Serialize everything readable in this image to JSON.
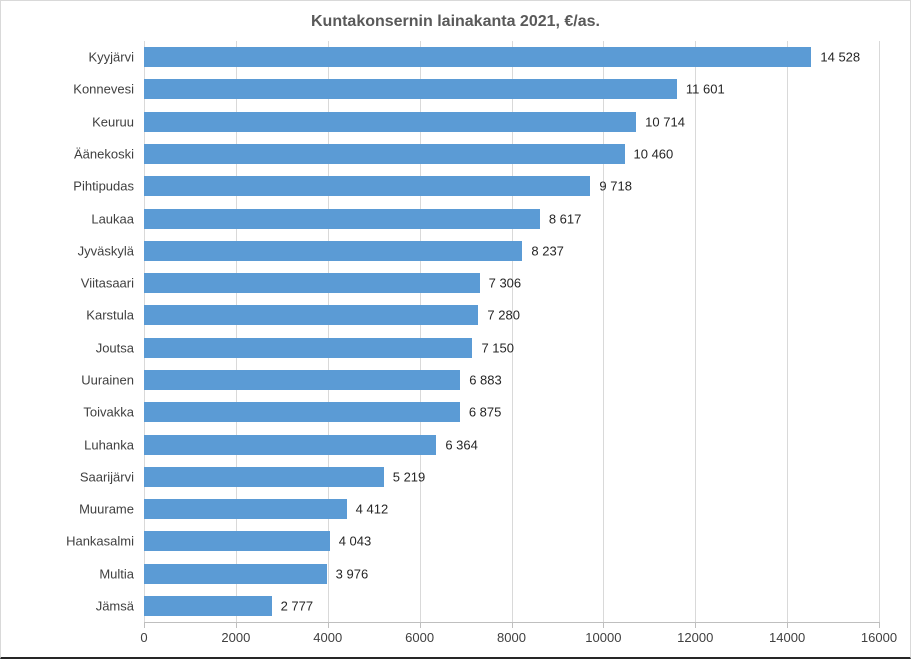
{
  "chart_data": {
    "type": "bar",
    "orientation": "horizontal",
    "title": "Kuntakonsernin lainakanta 2021, €/as.",
    "categories": [
      "Kyyjärvi",
      "Konnevesi",
      "Keuruu",
      "Äänekoski",
      "Pihtipudas",
      "Laukaa",
      "Jyväskylä",
      "Viitasaari",
      "Karstula",
      "Joutsa",
      "Uurainen",
      "Toivakka",
      "Luhanka",
      "Saarijärvi",
      "Muurame",
      "Hankasalmi",
      "Multia",
      "Jämsä"
    ],
    "values": [
      14528,
      11601,
      10714,
      10460,
      9718,
      8617,
      8237,
      7306,
      7280,
      7150,
      6883,
      6875,
      6364,
      5219,
      4412,
      4043,
      3976,
      2777
    ],
    "value_labels": [
      "14 528",
      "11 601",
      "10 714",
      "10 460",
      "9 718",
      "8 617",
      "8 237",
      "7 306",
      "7 280",
      "7 150",
      "6 883",
      "6 875",
      "6 364",
      "5 219",
      "4 412",
      "4 043",
      "3 976",
      "2 777"
    ],
    "x_ticks": [
      0,
      2000,
      4000,
      6000,
      8000,
      10000,
      12000,
      14000,
      16000
    ],
    "x_tick_labels": [
      "0",
      "2000",
      "4000",
      "6000",
      "8000",
      "10000",
      "12000",
      "14000",
      "16000"
    ],
    "xlim": [
      0,
      16000
    ],
    "xlabel": "",
    "ylabel": "",
    "grid": true,
    "legend": false,
    "bar_color": "#5B9BD5",
    "gridline_color": "#D9D9D9",
    "axis_line_color": "#BFBFBF",
    "title_color": "#595959",
    "label_color": "#404040"
  }
}
